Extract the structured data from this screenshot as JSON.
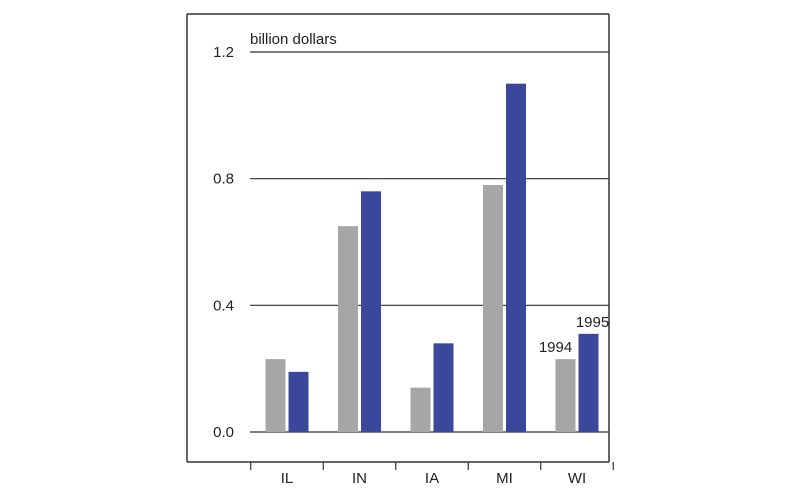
{
  "chart_data": {
    "type": "bar",
    "unit_label": "billion dollars",
    "categories": [
      "IL",
      "IN",
      "IA",
      "MI",
      "WI"
    ],
    "series": [
      {
        "name": "1994",
        "color": "#a6a6a6",
        "values": [
          0.23,
          0.65,
          0.14,
          0.78,
          0.23
        ]
      },
      {
        "name": "1995",
        "color": "#3a479a",
        "values": [
          0.19,
          0.76,
          0.28,
          1.1,
          0.31
        ]
      }
    ],
    "ylim": [
      0,
      1.2
    ],
    "yticks": [
      "0.0",
      "0.4",
      "0.8",
      "1.2"
    ],
    "ytick_values": [
      0,
      0.4,
      0.8,
      1.2
    ],
    "grid": true,
    "series_labels_on_category": "WI"
  }
}
